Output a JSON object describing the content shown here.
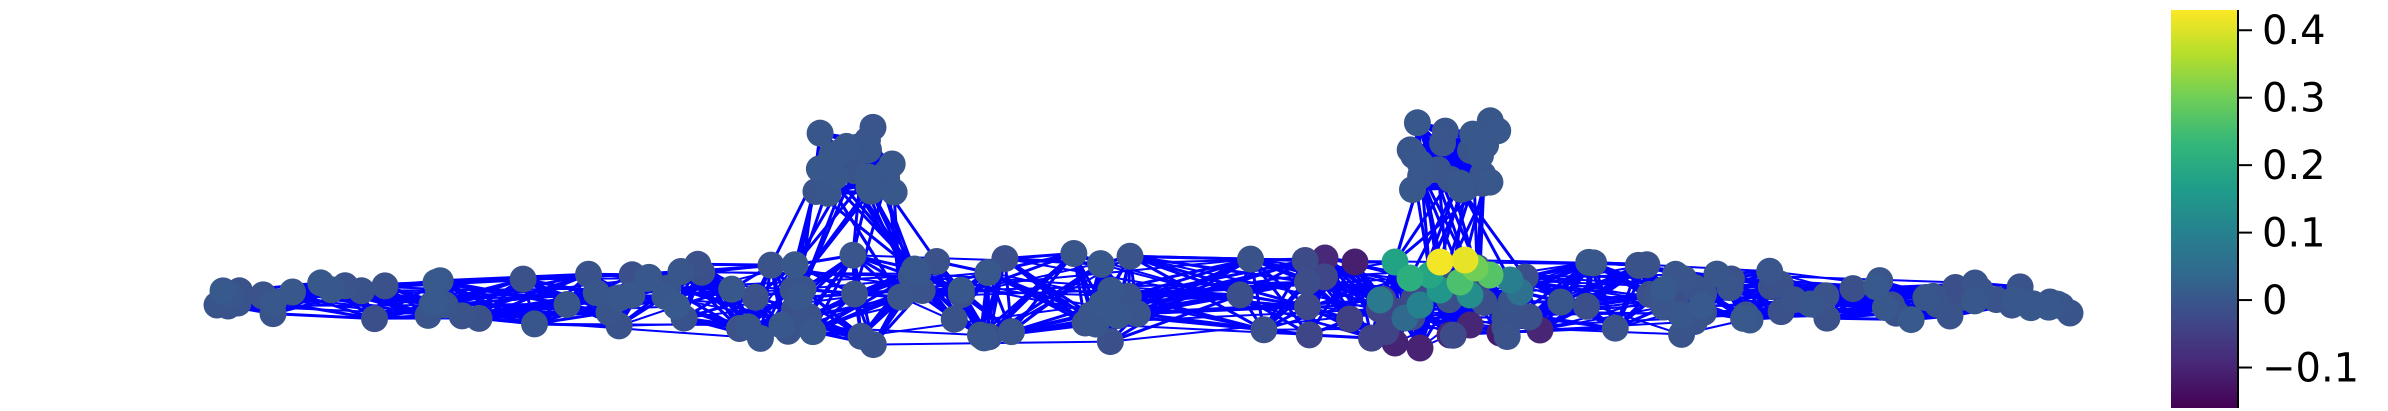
{
  "chart_data": {
    "type": "network",
    "edge_color": "#0000ff",
    "colormap": "viridis",
    "colormap_stops": [
      "#440154",
      "#482878",
      "#3e4989",
      "#31688e",
      "#26828e",
      "#1f9e89",
      "#35b779",
      "#6ece58",
      "#b5de2b",
      "#fde725"
    ],
    "colorbar": {
      "range": [
        -0.16,
        0.43
      ],
      "ticks": [
        "0.4",
        "0.3",
        "0.2",
        "0.1",
        "0",
        "−0.1"
      ],
      "tick_values": [
        0.4,
        0.3,
        0.2,
        0.1,
        0.0,
        -0.1
      ]
    },
    "clusters": [
      "left-pendant-cluster",
      "right-pendant-cluster",
      "horizontal-band"
    ],
    "node_value_range_shown": [
      -0.12,
      0.43
    ]
  }
}
